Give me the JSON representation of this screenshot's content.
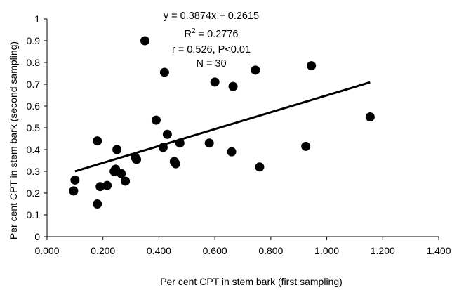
{
  "chart_data": {
    "type": "scatter",
    "xlabel": "Per cent CPT in stem bark (first sampling)",
    "ylabel": "Per cent CPT in stem bark (second sampling)",
    "xlim": [
      0,
      1.4
    ],
    "ylim": [
      0,
      1
    ],
    "x_ticks": [
      "0.000",
      "0.200",
      "0.400",
      "0.600",
      "0.800",
      "1.000",
      "1.200",
      "1.400"
    ],
    "y_ticks": [
      "0",
      "0.1",
      "0.2",
      "0.3",
      "0.4",
      "0.5",
      "0.6",
      "0.7",
      "0.8",
      "0.9",
      "1"
    ],
    "grid": false,
    "legend": "none",
    "points": [
      {
        "x": 0.095,
        "y": 0.21
      },
      {
        "x": 0.1,
        "y": 0.26
      },
      {
        "x": 0.18,
        "y": 0.15
      },
      {
        "x": 0.18,
        "y": 0.44
      },
      {
        "x": 0.19,
        "y": 0.23
      },
      {
        "x": 0.215,
        "y": 0.235
      },
      {
        "x": 0.24,
        "y": 0.3
      },
      {
        "x": 0.245,
        "y": 0.31
      },
      {
        "x": 0.25,
        "y": 0.4
      },
      {
        "x": 0.265,
        "y": 0.29
      },
      {
        "x": 0.28,
        "y": 0.255
      },
      {
        "x": 0.315,
        "y": 0.365
      },
      {
        "x": 0.32,
        "y": 0.355
      },
      {
        "x": 0.35,
        "y": 0.9
      },
      {
        "x": 0.39,
        "y": 0.535
      },
      {
        "x": 0.415,
        "y": 0.41
      },
      {
        "x": 0.42,
        "y": 0.755
      },
      {
        "x": 0.43,
        "y": 0.47
      },
      {
        "x": 0.455,
        "y": 0.345
      },
      {
        "x": 0.46,
        "y": 0.335
      },
      {
        "x": 0.475,
        "y": 0.43
      },
      {
        "x": 0.58,
        "y": 0.43
      },
      {
        "x": 0.6,
        "y": 0.71
      },
      {
        "x": 0.66,
        "y": 0.39
      },
      {
        "x": 0.665,
        "y": 0.69
      },
      {
        "x": 0.745,
        "y": 0.765
      },
      {
        "x": 0.76,
        "y": 0.32
      },
      {
        "x": 0.925,
        "y": 0.415
      },
      {
        "x": 0.945,
        "y": 0.785
      },
      {
        "x": 1.155,
        "y": 0.55
      }
    ],
    "trendline": {
      "slope": 0.3874,
      "intercept": 0.2615,
      "x_start": 0.1,
      "x_end": 1.155
    },
    "annotations": {
      "equation": "y = 0.3874x + 0.2615",
      "r2_prefix": "R",
      "r2_sup": "2",
      "r2_suffix": " = 0.2776",
      "r_stat": "r = 0.526, P<0.01",
      "n": "N = 30"
    },
    "colors": {
      "marker": "#000000",
      "line": "#000000",
      "axis": "#000000"
    }
  }
}
